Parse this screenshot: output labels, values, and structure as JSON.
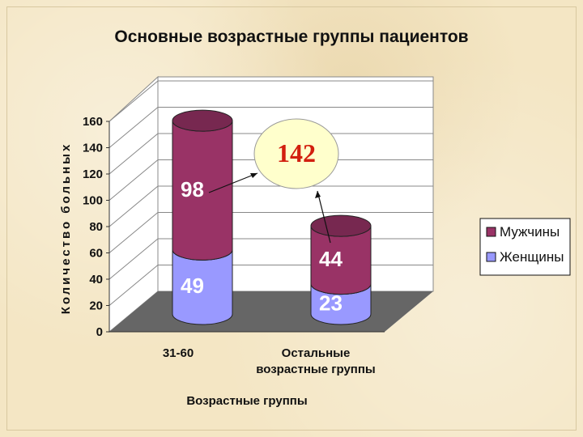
{
  "chart_data": {
    "type": "bar",
    "title": "Основные возрастные группы пациентов",
    "ylabel": "Количество больных",
    "xlabel": "Возрастные группы",
    "categories": [
      "31-60",
      "Остальные возрастные группы"
    ],
    "category_lines": [
      [
        "31-60"
      ],
      [
        "Остальные",
        "возрастные группы"
      ]
    ],
    "series": [
      {
        "name": "Женщины",
        "values": [
          49,
          23
        ],
        "color": "#9999ff"
      },
      {
        "name": "Мужчины",
        "values": [
          98,
          44
        ],
        "color": "#993366"
      }
    ],
    "stacked": true,
    "ylim": [
      0,
      160
    ],
    "yticks": [
      0,
      20,
      40,
      60,
      80,
      100,
      120,
      140,
      160
    ],
    "grid": true,
    "legend_position": "right",
    "annotation": {
      "text": "142",
      "color": "#d21f0f"
    }
  },
  "colors": {
    "floor": "#666666",
    "wall": "#ffffff",
    "callout_fill": "#ffffcc"
  }
}
